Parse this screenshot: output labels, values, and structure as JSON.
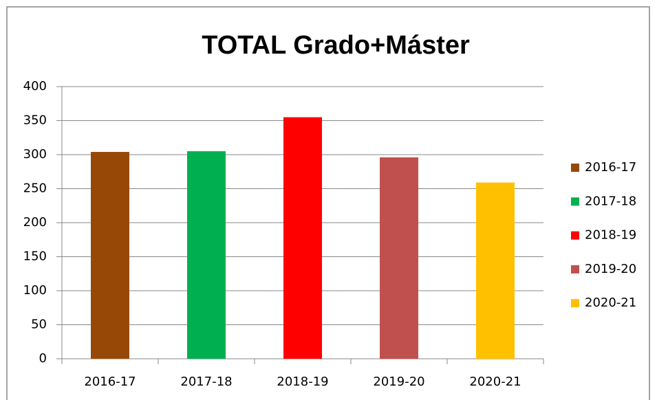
{
  "chart_data": {
    "type": "bar",
    "title": "TOTAL Grado+Máster",
    "categories": [
      "2016-17",
      "2017-18",
      "2018-19",
      "2019-20",
      "2020-21"
    ],
    "values": [
      304,
      305,
      355,
      296,
      259
    ],
    "colors": [
      "#974806",
      "#00b050",
      "#ff0000",
      "#c0504d",
      "#ffc000"
    ],
    "ylim": [
      0,
      400
    ],
    "yticks": [
      0,
      50,
      100,
      150,
      200,
      250,
      300,
      350,
      400
    ],
    "grid": true,
    "legend": "right"
  }
}
